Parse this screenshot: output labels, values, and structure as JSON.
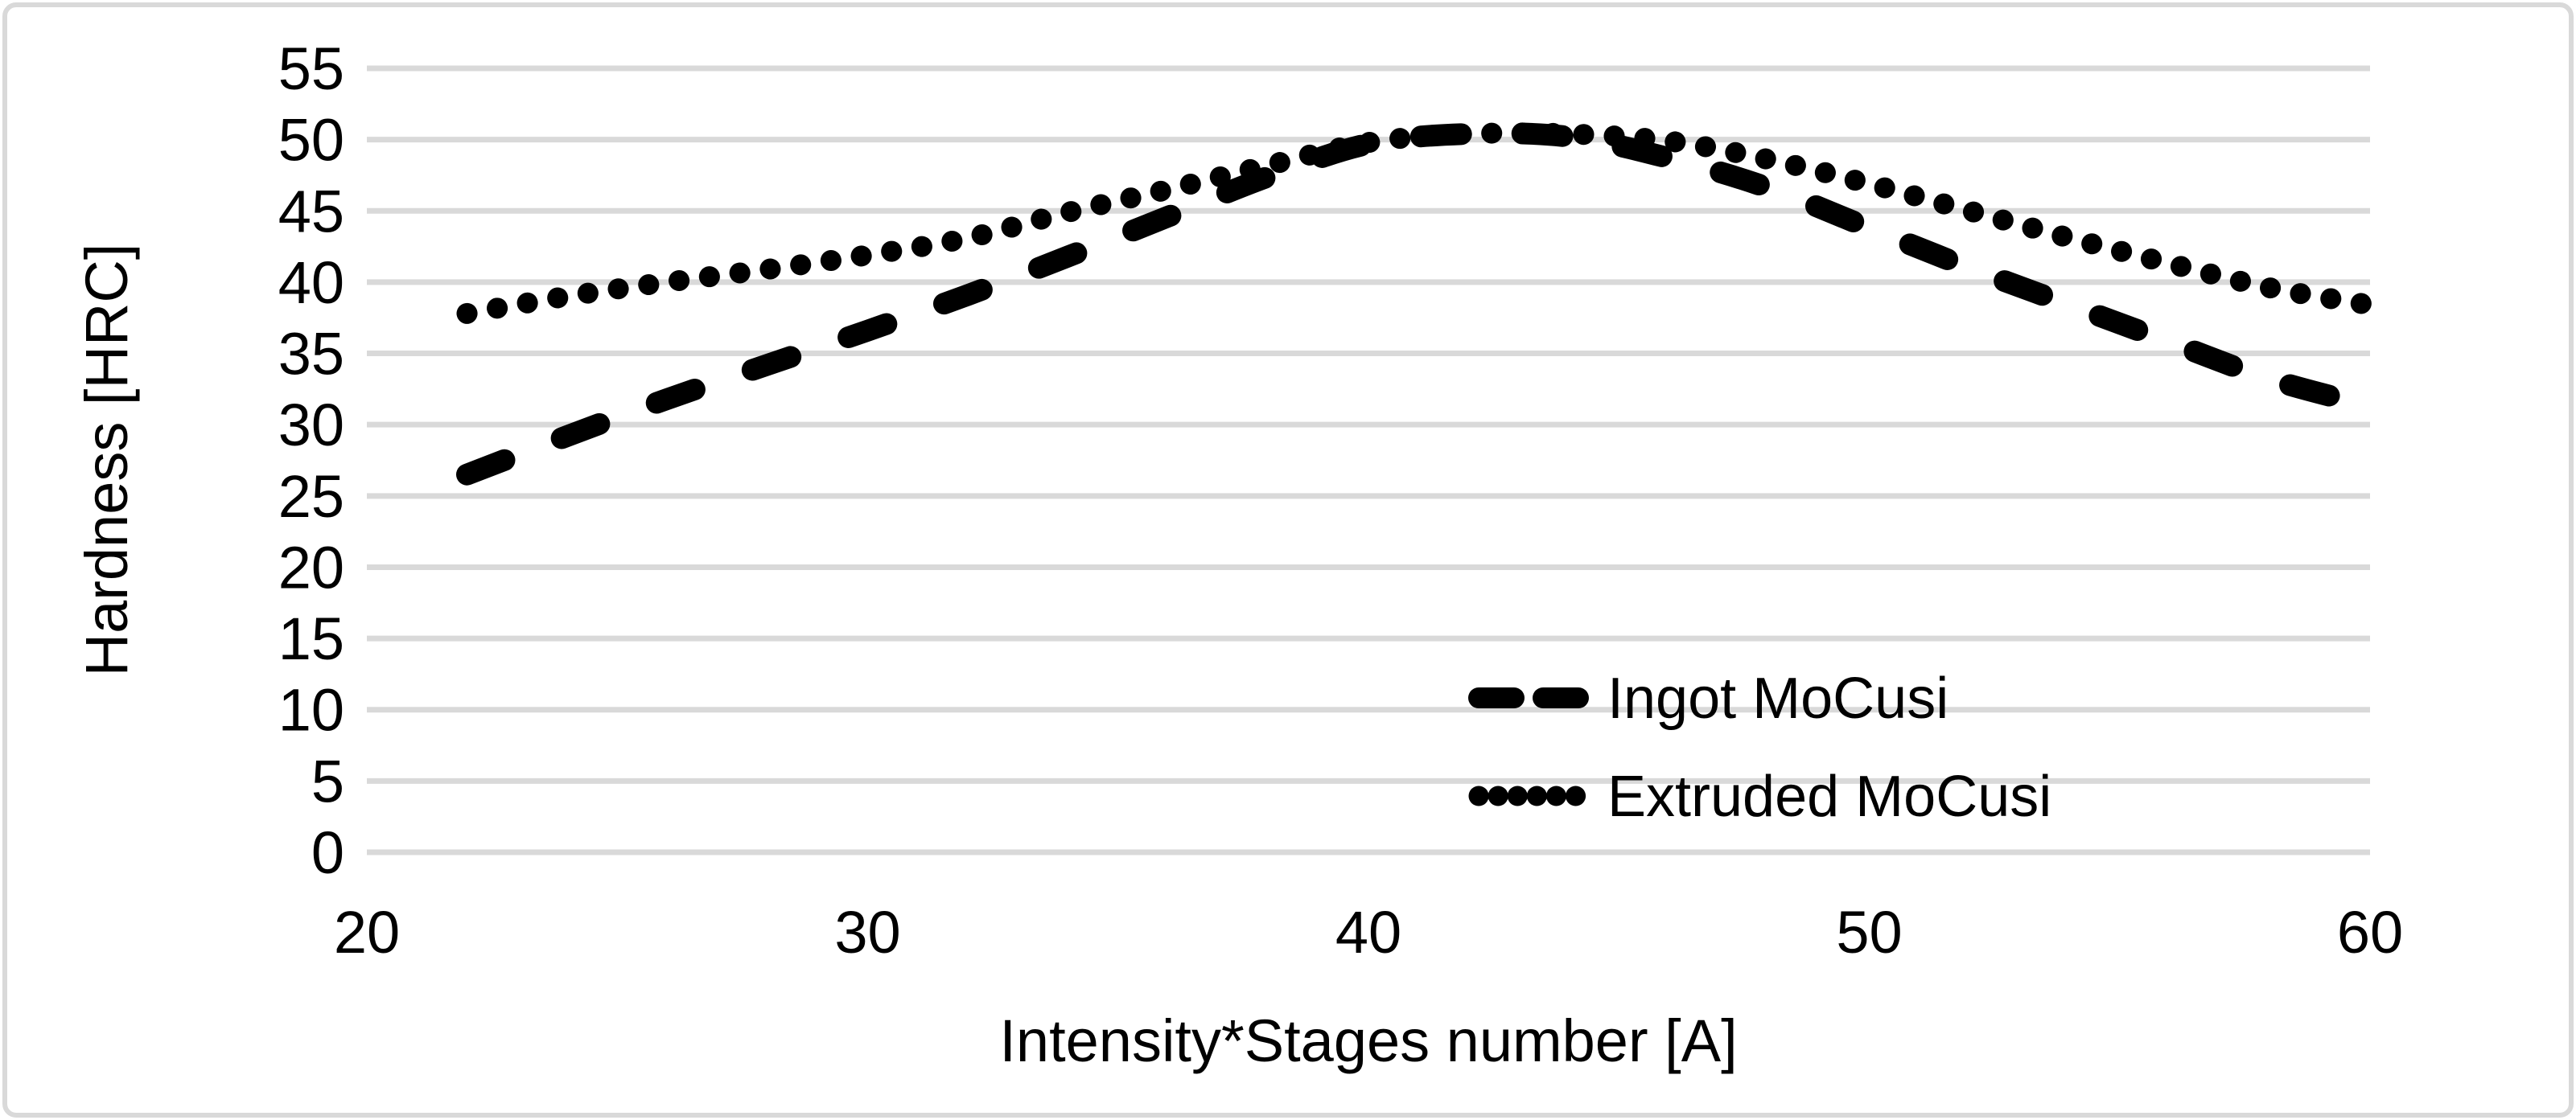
{
  "chart_data": {
    "type": "line",
    "title": "",
    "xlabel": "Intensity*Stages number [A]",
    "ylabel": "Hardness [HRC]",
    "x_axis": {
      "min": 20,
      "max": 60,
      "ticks": [
        20,
        30,
        40,
        50,
        60
      ]
    },
    "y_axis": {
      "min": 0,
      "max": 55,
      "ticks": [
        0,
        5,
        10,
        15,
        20,
        25,
        30,
        35,
        40,
        45,
        50,
        55
      ]
    },
    "grid": "horizontal-only",
    "legend_position": "inside-right",
    "x": [
      22,
      24,
      26,
      28,
      30,
      32,
      34,
      36,
      38,
      40,
      42,
      44,
      46,
      48,
      50,
      52,
      54,
      56,
      58,
      60
    ],
    "series": [
      {
        "name": "Ingot MoCusi",
        "line_style": "dashed",
        "color": "#000000",
        "values": [
          26.5,
          29.2,
          31.8,
          34.2,
          36.6,
          39.1,
          41.8,
          44.6,
          47.4,
          49.7,
          50.4,
          50.2,
          48.7,
          46.6,
          43.8,
          41.0,
          38.4,
          35.8,
          33.2,
          31.3
        ]
      },
      {
        "name": "Extruded MoCusi",
        "line_style": "dotted",
        "color": "#000000",
        "values": [
          37.8,
          39.0,
          40.0,
          40.9,
          41.9,
          43.1,
          44.9,
          46.5,
          48.2,
          49.8,
          50.4,
          50.4,
          49.9,
          48.6,
          46.9,
          45.0,
          43.1,
          41.3,
          39.6,
          38.4
        ]
      }
    ],
    "colors": {
      "series": "#000000",
      "gridline": "#d9d9d9",
      "border": "#d9d9d9",
      "text": "#000000",
      "background": "#ffffff"
    }
  }
}
